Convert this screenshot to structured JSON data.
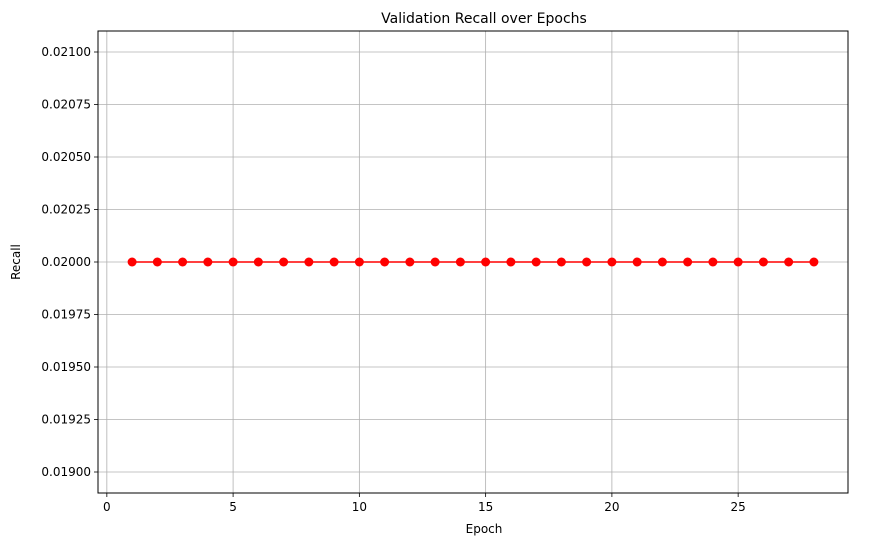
{
  "chart_data": {
    "type": "line",
    "title": "Validation Recall over Epochs",
    "xlabel": "Epoch",
    "ylabel": "Recall",
    "xlim": [
      -0.35,
      29.35
    ],
    "ylim": [
      0.0189,
      0.0211
    ],
    "xticks": [
      0,
      5,
      10,
      15,
      20,
      25
    ],
    "xtick_labels": [
      "0",
      "5",
      "10",
      "15",
      "20",
      "25"
    ],
    "yticks": [
      0.019,
      0.01925,
      0.0195,
      0.01975,
      0.02,
      0.02025,
      0.0205,
      0.02075,
      0.021
    ],
    "ytick_labels": [
      "0.01900",
      "0.01925",
      "0.01950",
      "0.01975",
      "0.02000",
      "0.02025",
      "0.02050",
      "0.02075",
      "0.02100"
    ],
    "grid": true,
    "series": [
      {
        "color": "#ff0000",
        "marker": "circle",
        "x": [
          1,
          2,
          3,
          4,
          5,
          6,
          7,
          8,
          9,
          10,
          11,
          12,
          13,
          14,
          15,
          16,
          17,
          18,
          19,
          20,
          21,
          22,
          23,
          24,
          25,
          26,
          27,
          28
        ],
        "y": [
          0.02,
          0.02,
          0.02,
          0.02,
          0.02,
          0.02,
          0.02,
          0.02,
          0.02,
          0.02,
          0.02,
          0.02,
          0.02,
          0.02,
          0.02,
          0.02,
          0.02,
          0.02,
          0.02,
          0.02,
          0.02,
          0.02,
          0.02,
          0.02,
          0.02,
          0.02,
          0.02,
          0.02
        ]
      }
    ]
  }
}
